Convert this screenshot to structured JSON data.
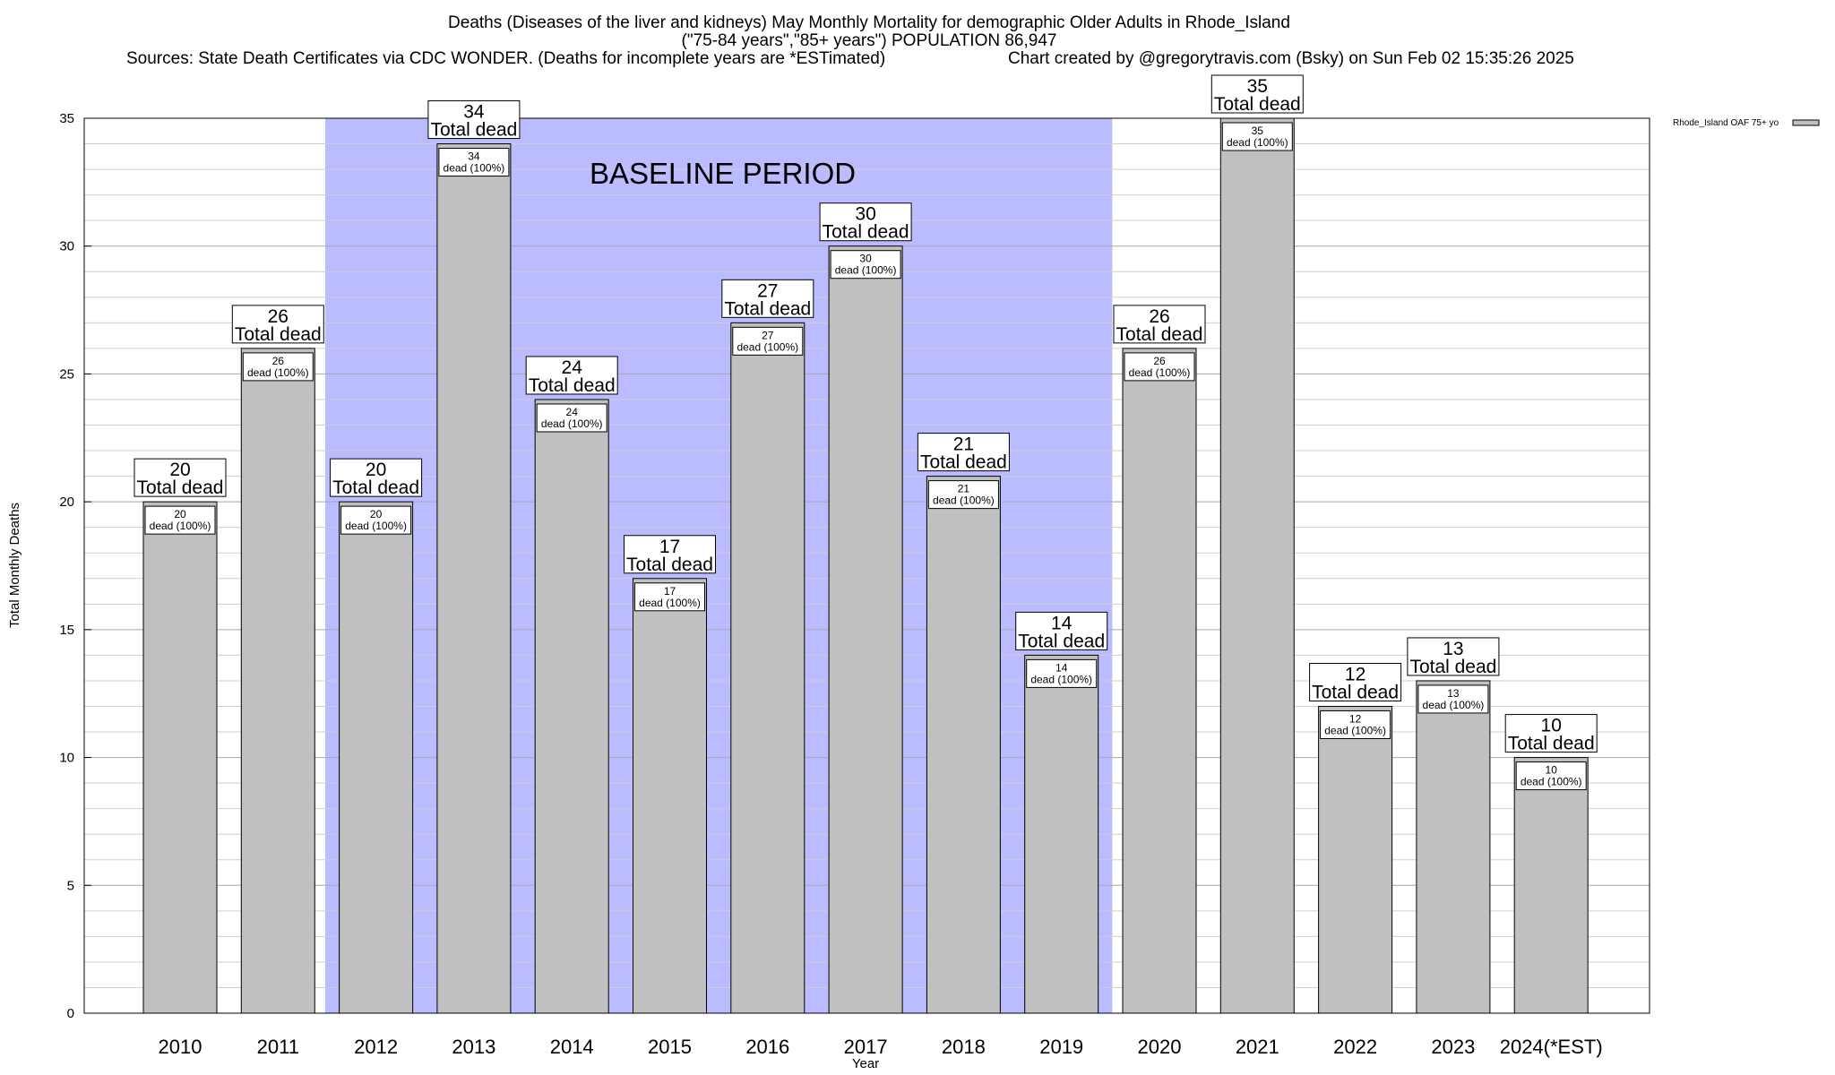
{
  "chart_data": {
    "type": "bar",
    "title": "Deaths (Diseases of the liver and kidneys) May Monthly Mortality for demographic Older Adults in Rhode_Island",
    "subtitle": "(\"75-84 years\",\"85+ years\") POPULATION 86,947",
    "source": "Sources: State Death Certificates via CDC WONDER. (Deaths for incomplete years are *ESTimated)",
    "credit": "Chart created by @gregorytravis.com (Bsky) on Sun Feb 02 15:35:26 2025",
    "xlabel": "Year",
    "ylabel": "Total Monthly Deaths",
    "ylim": [
      0,
      35
    ],
    "yticks": [
      0,
      5,
      10,
      15,
      20,
      25,
      30,
      35
    ],
    "categories": [
      "2010",
      "2011",
      "2012",
      "2013",
      "2014",
      "2015",
      "2016",
      "2017",
      "2018",
      "2019",
      "2020",
      "2021",
      "2022",
      "2023",
      "2024(*EST)"
    ],
    "series": [
      {
        "name": "Rhode_Island OAF 75+ yo",
        "values": [
          20,
          26,
          20,
          34,
          24,
          17,
          27,
          30,
          21,
          14,
          26,
          35,
          12,
          13,
          10
        ]
      }
    ],
    "total_label": "Total dead",
    "inner_label": "dead (100%)",
    "baseline": {
      "label": "BASELINE PERIOD",
      "from": "2012",
      "to": "2019"
    },
    "grid": true,
    "legend_position": "top-right",
    "colors": {
      "bar": "#c0c0c0",
      "baseline": "#bbbbff"
    }
  }
}
